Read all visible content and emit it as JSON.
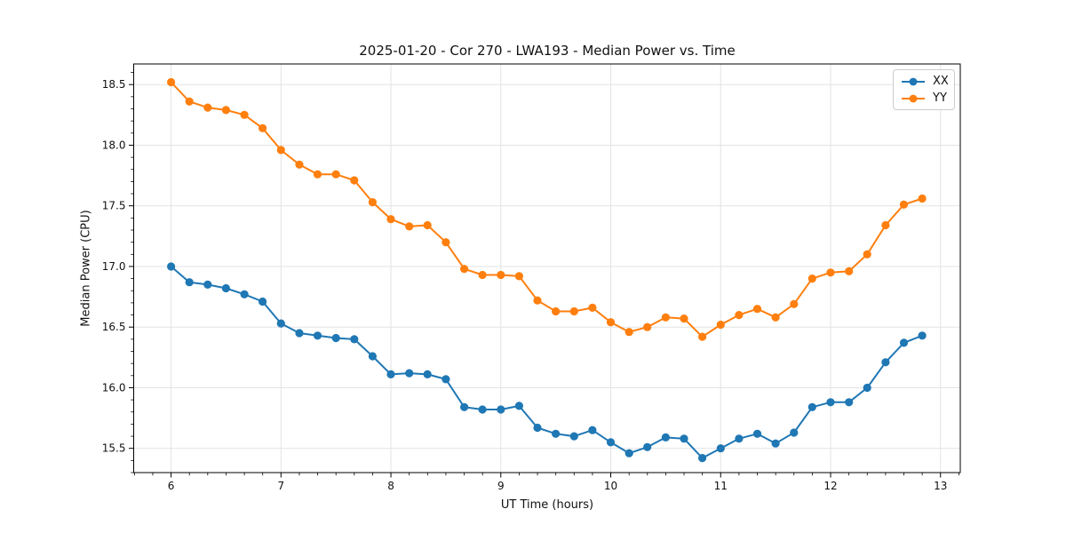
{
  "chart_data": {
    "type": "line",
    "title": "2025-01-20 - Cor 270 - LWA193 - Median Power vs. Time",
    "xlabel": "UT Time (hours)",
    "ylabel": "Median Power (CPU)",
    "xlim": [
      5.66,
      13.18
    ],
    "ylim": [
      15.3,
      18.67
    ],
    "grid": "major-on-light-gray",
    "legend_position": "upper right",
    "x_ticks": [
      {
        "value": 6,
        "label": "6"
      },
      {
        "value": 7,
        "label": "7"
      },
      {
        "value": 8,
        "label": "8"
      },
      {
        "value": 9,
        "label": "9"
      },
      {
        "value": 10,
        "label": "10"
      },
      {
        "value": 11,
        "label": "11"
      },
      {
        "value": 12,
        "label": "12"
      },
      {
        "value": 13,
        "label": "13"
      }
    ],
    "y_ticks": [
      {
        "value": 15.5,
        "label": "15.5"
      },
      {
        "value": 16.0,
        "label": "16.0"
      },
      {
        "value": 16.5,
        "label": "16.5"
      },
      {
        "value": 17.0,
        "label": "17.0"
      },
      {
        "value": 17.5,
        "label": "17.5"
      },
      {
        "value": 18.0,
        "label": "18.0"
      },
      {
        "value": 18.5,
        "label": "18.5"
      }
    ],
    "x_minor_interval": 0.16667,
    "y_minor_interval": 0.1,
    "x": [
      6.0,
      6.167,
      6.333,
      6.5,
      6.667,
      6.833,
      7.0,
      7.167,
      7.333,
      7.5,
      7.667,
      7.833,
      8.0,
      8.167,
      8.333,
      8.5,
      8.667,
      8.833,
      9.0,
      9.167,
      9.333,
      9.5,
      9.667,
      9.833,
      10.0,
      10.167,
      10.333,
      10.5,
      10.667,
      10.833,
      11.0,
      11.167,
      11.333,
      11.5,
      11.667,
      11.833,
      12.0,
      12.167,
      12.333,
      12.5,
      12.667,
      12.833
    ],
    "series": [
      {
        "name": "XX",
        "color": "#1f77b4",
        "values": [
          17.0,
          16.87,
          16.85,
          16.82,
          16.77,
          16.71,
          16.53,
          16.45,
          16.43,
          16.41,
          16.4,
          16.26,
          16.11,
          16.12,
          16.11,
          16.07,
          15.84,
          15.82,
          15.82,
          15.85,
          15.67,
          15.62,
          15.6,
          15.65,
          15.55,
          15.46,
          15.51,
          15.59,
          15.58,
          15.42,
          15.5,
          15.58,
          15.62,
          15.54,
          15.63,
          15.84,
          15.88,
          15.88,
          16.0,
          16.21,
          16.37,
          16.43
        ]
      },
      {
        "name": "YY",
        "color": "#ff7f0e",
        "values": [
          18.52,
          18.36,
          18.31,
          18.29,
          18.25,
          18.14,
          17.96,
          17.84,
          17.76,
          17.76,
          17.71,
          17.53,
          17.39,
          17.33,
          17.34,
          17.2,
          16.98,
          16.93,
          16.93,
          16.92,
          16.72,
          16.63,
          16.63,
          16.66,
          16.54,
          16.46,
          16.5,
          16.58,
          16.57,
          16.42,
          16.52,
          16.6,
          16.65,
          16.58,
          16.69,
          16.9,
          16.95,
          16.96,
          17.1,
          17.34,
          17.51,
          17.56
        ]
      }
    ],
    "colors": {
      "grid": "#e3e3e3",
      "axis": "#000000",
      "text": "#111111",
      "legend_border": "#cccccc"
    }
  }
}
